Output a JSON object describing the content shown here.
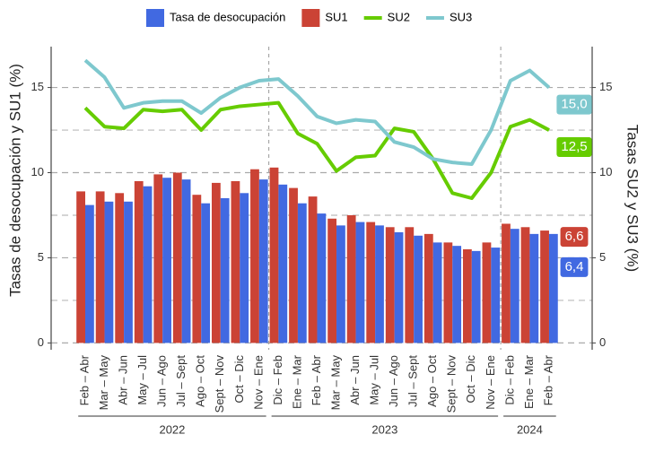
{
  "chart_data": {
    "type": "bar-line",
    "categories": [
      "Feb – Abr",
      "Mar – May",
      "Abr – Jun",
      "May – Jul",
      "Jun – Ago",
      "Jul – Sept",
      "Ago – Oct",
      "Sept – Nov",
      "Oct – Dic",
      "Nov – Ene",
      "Dic – Feb",
      "Ene – Mar",
      "Feb – Abr",
      "Mar – May",
      "Abr – Jun",
      "May – Jul",
      "Jun – Ago",
      "Jul – Sept",
      "Ago – Oct",
      "Sept – Nov",
      "Oct – Dic",
      "Nov – Ene",
      "Dic – Feb",
      "Ene – Mar",
      "Feb – Abr"
    ],
    "groups": [
      {
        "label": "2022",
        "start": 0,
        "end": 9
      },
      {
        "label": "2023",
        "start": 10,
        "end": 21
      },
      {
        "label": "2024",
        "start": 22,
        "end": 24
      }
    ],
    "series": [
      {
        "name": "Tasa de desocupación",
        "color": "#4169e1",
        "kind": "bar",
        "values": [
          8.1,
          8.3,
          8.3,
          9.2,
          9.7,
          9.6,
          8.2,
          8.5,
          8.8,
          9.6,
          9.3,
          8.2,
          7.6,
          6.9,
          7.1,
          6.9,
          6.5,
          6.3,
          5.9,
          5.7,
          5.4,
          5.6,
          6.7,
          6.4,
          6.4
        ],
        "value_labels": [
          null,
          null,
          null,
          null,
          null,
          null,
          null,
          null,
          null,
          null,
          null,
          null,
          null,
          null,
          null,
          null,
          null,
          null,
          null,
          null,
          null,
          null,
          null,
          null,
          "6,4"
        ]
      },
      {
        "name": "SU1",
        "color": "#cb4335",
        "kind": "bar",
        "values": [
          8.9,
          8.9,
          8.8,
          9.5,
          9.9,
          10.0,
          8.7,
          9.4,
          9.5,
          10.2,
          10.3,
          9.1,
          8.6,
          7.3,
          7.5,
          7.1,
          6.8,
          6.8,
          6.4,
          5.9,
          5.5,
          5.9,
          7.0,
          6.8,
          6.6
        ],
        "value_labels": [
          null,
          null,
          null,
          null,
          null,
          null,
          null,
          null,
          null,
          null,
          null,
          null,
          null,
          null,
          null,
          null,
          null,
          null,
          null,
          null,
          null,
          null,
          null,
          null,
          "6,6"
        ]
      },
      {
        "name": "SU2",
        "color": "#66cc00",
        "kind": "line",
        "axis": "y2",
        "values": [
          13.8,
          12.7,
          12.6,
          13.7,
          13.6,
          13.7,
          12.5,
          13.7,
          13.9,
          14.0,
          14.1,
          12.3,
          11.7,
          10.1,
          10.9,
          11.0,
          12.6,
          12.4,
          10.8,
          8.8,
          8.5,
          10.0,
          12.7,
          13.1,
          12.5
        ],
        "value_labels": [
          null,
          null,
          null,
          null,
          null,
          null,
          null,
          null,
          null,
          null,
          null,
          null,
          null,
          null,
          null,
          null,
          null,
          null,
          null,
          null,
          null,
          null,
          null,
          null,
          "12,5"
        ]
      },
      {
        "name": "SU3",
        "color": "#7ec8ce",
        "kind": "line",
        "axis": "y2",
        "values": [
          16.6,
          15.6,
          13.8,
          14.1,
          14.2,
          14.2,
          13.5,
          14.4,
          15.0,
          15.4,
          15.5,
          14.5,
          13.3,
          12.9,
          13.1,
          13.0,
          11.8,
          11.5,
          10.8,
          10.6,
          10.5,
          12.5,
          15.4,
          16.0,
          15.0
        ],
        "value_labels": [
          null,
          null,
          null,
          null,
          null,
          null,
          null,
          null,
          null,
          null,
          null,
          null,
          null,
          null,
          null,
          null,
          null,
          null,
          null,
          null,
          null,
          null,
          null,
          null,
          "15,0"
        ]
      }
    ],
    "y_label": "Tasas de desocupación y SU1 (%)",
    "y2_label": "Tasas SU2 y SU3 (%)",
    "ylim": [
      -0.4,
      17.4
    ],
    "yticks": [
      0,
      5,
      10,
      15
    ],
    "yminor": [
      2.5,
      7.5,
      12.5
    ],
    "y2lim": [
      -0.4,
      17.4
    ],
    "y2ticks": [
      0,
      5,
      10,
      15
    ],
    "grid": true,
    "legend": "top"
  }
}
